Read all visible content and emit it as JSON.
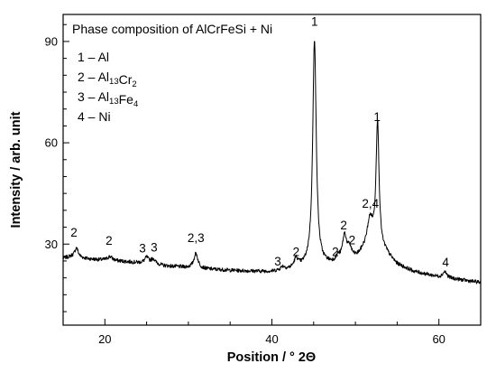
{
  "chart_data": {
    "type": "line",
    "title": "Phase composition of AlCrFeSi + Ni",
    "xlabel": "Position / ° 2Θ",
    "ylabel": "Intensity / arb. unit",
    "xlim": [
      15,
      65
    ],
    "ylim": [
      6,
      98
    ],
    "xticks": [
      20,
      40,
      60
    ],
    "yticks": [
      30,
      60,
      90
    ],
    "minor_x_step": 5,
    "minor_y_step": 5,
    "grid": false,
    "legend": {
      "position": "top-left",
      "entries": [
        {
          "num": "1",
          "base": "Al",
          "parts": []
        },
        {
          "num": "2",
          "base": "",
          "parts": [
            [
              "Al",
              "13"
            ],
            [
              "Cr",
              "2"
            ]
          ]
        },
        {
          "num": "3",
          "base": "",
          "parts": [
            [
              "Al",
              "13"
            ],
            [
              "Fe",
              "4"
            ]
          ]
        },
        {
          "num": "4",
          "base": "Ni",
          "parts": []
        }
      ]
    },
    "series": [
      {
        "color": "#000000",
        "baseline": [
          [
            15,
            25.8
          ],
          [
            16,
            26.3
          ],
          [
            18,
            25.6
          ],
          [
            20,
            25.2
          ],
          [
            22,
            24.9
          ],
          [
            24,
            24.5
          ],
          [
            25.5,
            24.6
          ],
          [
            27,
            23.6
          ],
          [
            30,
            23.0
          ],
          [
            32,
            22.6
          ],
          [
            35,
            22.2
          ],
          [
            38,
            21.9
          ],
          [
            40,
            21.8
          ],
          [
            42,
            22.3
          ],
          [
            43.5,
            23.0
          ],
          [
            44.3,
            23.5
          ],
          [
            46.3,
            23.8
          ],
          [
            47.5,
            24.0
          ],
          [
            49,
            24.8
          ],
          [
            50.2,
            25.6
          ],
          [
            50.9,
            27.0
          ],
          [
            53.6,
            27.0
          ],
          [
            55,
            23.8
          ],
          [
            57,
            21.8
          ],
          [
            60,
            20.2
          ],
          [
            62,
            19.6
          ],
          [
            65,
            18.6
          ]
        ],
        "peaks": [
          {
            "x": 16.6,
            "y": 2.8,
            "w": 0.25
          },
          {
            "x": 20.6,
            "y": 1.2,
            "w": 0.35
          },
          {
            "x": 25.0,
            "y": 1.5,
            "w": 0.25
          },
          {
            "x": 25.8,
            "y": 1.2,
            "w": 0.25
          },
          {
            "x": 30.9,
            "y": 4.4,
            "w": 0.3
          },
          {
            "x": 41.3,
            "y": 1.0,
            "w": 0.3
          },
          {
            "x": 42.9,
            "y": 2.6,
            "w": 0.3
          },
          {
            "x": 45.1,
            "y": 67.0,
            "w": 0.25
          },
          {
            "x": 47.9,
            "y": 1.5,
            "w": 0.25
          },
          {
            "x": 48.7,
            "y": 7.4,
            "w": 0.3
          },
          {
            "x": 49.3,
            "y": 3.0,
            "w": 0.3
          },
          {
            "x": 51.75,
            "y": 9.5,
            "w": 0.45
          },
          {
            "x": 52.65,
            "y": 38.0,
            "w": 0.22
          },
          {
            "x": 60.7,
            "y": 1.8,
            "w": 0.3
          }
        ],
        "noise": 0.55
      }
    ],
    "annotations": [
      {
        "text": "2",
        "x": 16.3,
        "y": 32.2
      },
      {
        "text": "2",
        "x": 20.5,
        "y": 29.8
      },
      {
        "text": "3",
        "x": 24.5,
        "y": 27.5
      },
      {
        "text": "3",
        "x": 25.9,
        "y": 27.8
      },
      {
        "text": "2,3",
        "x": 30.9,
        "y": 30.6
      },
      {
        "text": "3",
        "x": 40.7,
        "y": 23.7
      },
      {
        "text": "2",
        "x": 42.9,
        "y": 26.5
      },
      {
        "text": "1",
        "x": 45.1,
        "y": 94.7
      },
      {
        "text": "2",
        "x": 47.6,
        "y": 26.4
      },
      {
        "text": "2",
        "x": 48.6,
        "y": 34.4
      },
      {
        "text": "2",
        "x": 49.6,
        "y": 29.9
      },
      {
        "text": "2,4",
        "x": 51.8,
        "y": 40.8
      },
      {
        "text": "1",
        "x": 52.6,
        "y": 66.5
      },
      {
        "text": "4",
        "x": 60.8,
        "y": 23.4
      }
    ]
  }
}
